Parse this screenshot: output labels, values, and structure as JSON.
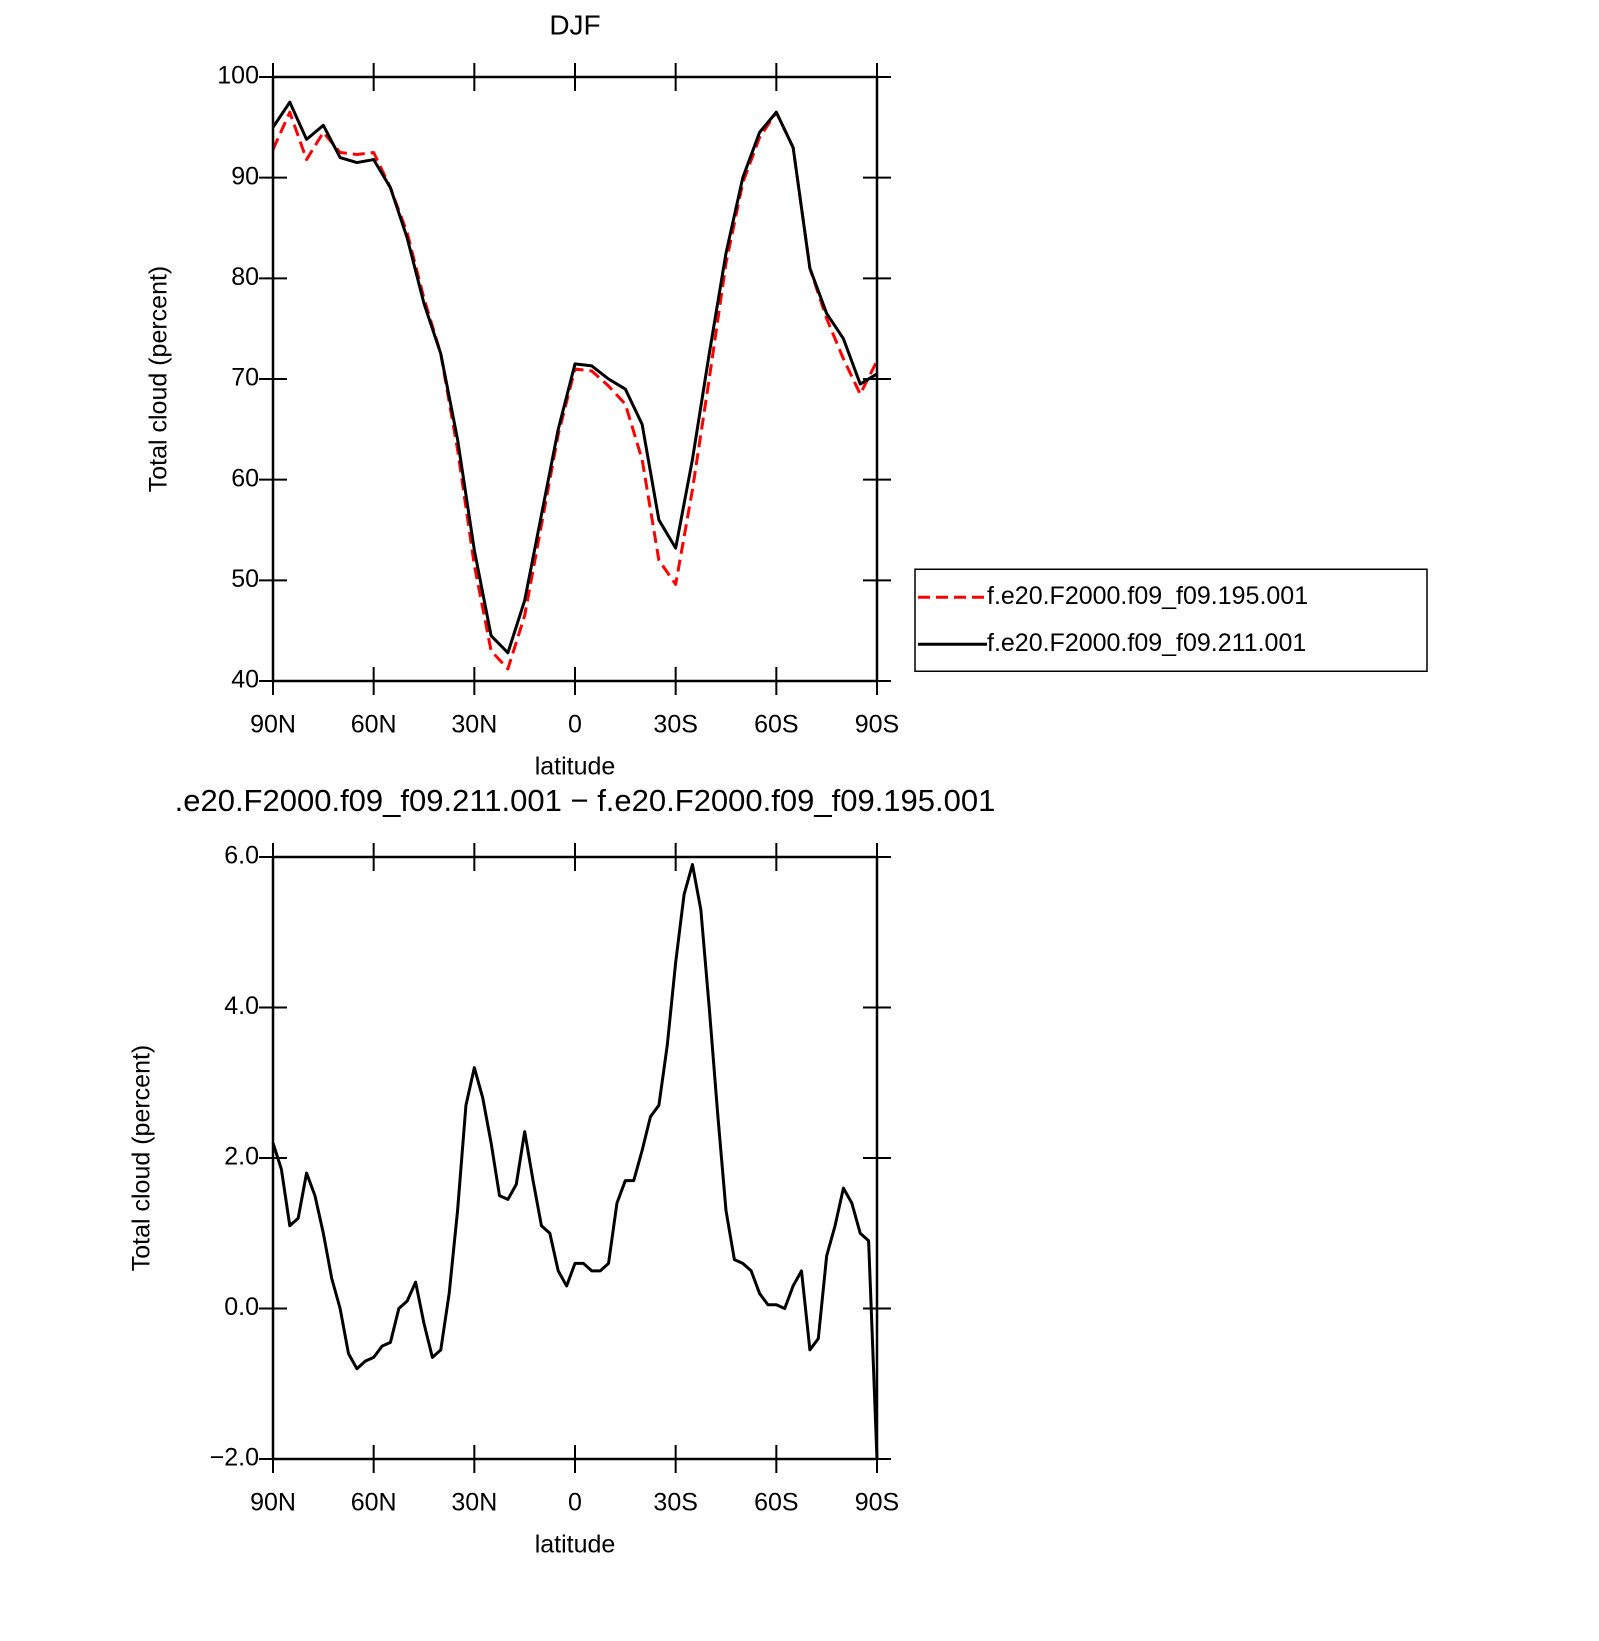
{
  "chart_data": [
    {
      "type": "line",
      "title": "DJF",
      "x_label": "latitude",
      "y_label": "Total cloud (percent)",
      "x": [
        90,
        85,
        80,
        75,
        70,
        65,
        60,
        55,
        50,
        45,
        40,
        35,
        30,
        25,
        20,
        15,
        10,
        5,
        0,
        -5,
        -10,
        -15,
        -20,
        -25,
        -30,
        -35,
        -40,
        -45,
        -50,
        -55,
        -60,
        -65,
        -70,
        -75,
        -80,
        -85,
        -90
      ],
      "series": [
        {
          "name": "f.e20.F2000.f09_f09.195.001",
          "color": "#ff0000",
          "linestyle": "dashed",
          "values": [
            92.8,
            96.5,
            91.8,
            94.5,
            92.5,
            92.3,
            92.5,
            89,
            84.5,
            78,
            72.5,
            63,
            51.5,
            43,
            41.2,
            46.5,
            55.5,
            64.5,
            71,
            70.8,
            69.3,
            67.5,
            62,
            52,
            49.6,
            59,
            70,
            81.5,
            89.5,
            94,
            96.5,
            93,
            81,
            76,
            72,
            68.5,
            71.8
          ]
        },
        {
          "name": "f.e20.F2000.f09_f09.211.001",
          "color": "#000000",
          "linestyle": "solid",
          "values": [
            95,
            97.5,
            93.8,
            95.2,
            92,
            91.5,
            91.8,
            89,
            84,
            77.5,
            72.5,
            64,
            53,
            44.5,
            42.8,
            48,
            56.5,
            65,
            71.5,
            71.3,
            70,
            69,
            65.5,
            56,
            53.2,
            62,
            72.5,
            82.5,
            90,
            94.5,
            96.5,
            93,
            81,
            76.5,
            74,
            69.5,
            70.5
          ]
        }
      ],
      "xlim": [
        90,
        -90
      ],
      "xticks": [
        {
          "value": 90,
          "label": "90N"
        },
        {
          "value": 60,
          "label": "60N"
        },
        {
          "value": 30,
          "label": "30N"
        },
        0,
        {
          "value": -30,
          "label": "30S"
        },
        {
          "value": -60,
          "label": "60S"
        },
        {
          "value": -90,
          "label": "90S"
        }
      ],
      "ylim": [
        40,
        100
      ],
      "yticks": [
        40,
        50,
        60,
        70,
        80,
        90,
        100
      ],
      "legend": "right",
      "grid": false
    },
    {
      "type": "line",
      "title": ".e20.F2000.f09_f09.211.001 − f.e20.F2000.f09_f09.195.001",
      "x_label": "latitude",
      "y_label": "Total cloud (percent)",
      "x": [
        90,
        87.5,
        85,
        82.5,
        80,
        77.5,
        75,
        72.5,
        70,
        67.5,
        65,
        62.5,
        60,
        57.5,
        55,
        52.5,
        50,
        47.5,
        45,
        42.5,
        40,
        37.5,
        35,
        32.5,
        30,
        27.5,
        25,
        22.5,
        20,
        17.5,
        15,
        12.5,
        10,
        7.5,
        5,
        2.5,
        0,
        -2.5,
        -5,
        -7.5,
        -10,
        -12.5,
        -15,
        -17.5,
        -20,
        -22.5,
        -25,
        -27.5,
        -30,
        -32.5,
        -35,
        -37.5,
        -40,
        -42.5,
        -45,
        -47.5,
        -50,
        -52.5,
        -55,
        -57.5,
        -60,
        -62.5,
        -65,
        -67.5,
        -70,
        -72.5,
        -75,
        -77.5,
        -80,
        -82.5,
        -85,
        -87.5,
        -90
      ],
      "series": [
        {
          "color": "#000000",
          "linestyle": "solid",
          "values": [
            2.2,
            1.85,
            1.1,
            1.2,
            1.8,
            1.5,
            1.0,
            0.4,
            0.0,
            -0.6,
            -0.8,
            -0.7,
            -0.65,
            -0.5,
            -0.45,
            0.0,
            0.1,
            0.35,
            -0.2,
            -0.65,
            -0.55,
            0.2,
            1.3,
            2.7,
            3.2,
            2.8,
            2.2,
            1.5,
            1.45,
            1.65,
            2.35,
            1.7,
            1.1,
            1.0,
            0.5,
            0.3,
            0.6,
            0.6,
            0.5,
            0.5,
            0.6,
            1.4,
            1.7,
            1.7,
            2.1,
            2.55,
            2.7,
            3.5,
            4.6,
            5.5,
            5.9,
            5.3,
            4.0,
            2.6,
            1.3,
            0.65,
            0.6,
            0.5,
            0.2,
            0.05,
            0.05,
            0.0,
            0.3,
            0.5,
            -0.55,
            -0.4,
            0.7,
            1.1,
            1.6,
            1.4,
            1.0,
            0.9,
            -2.0
          ]
        }
      ],
      "xlim": [
        90,
        -90
      ],
      "xticks": [
        {
          "value": 90,
          "label": "90N"
        },
        {
          "value": 60,
          "label": "60N"
        },
        {
          "value": 30,
          "label": "30N"
        },
        0,
        {
          "value": -30,
          "label": "30S"
        },
        {
          "value": -60,
          "label": "60S"
        },
        {
          "value": -90,
          "label": "90S"
        }
      ],
      "ylim": [
        -2,
        6
      ],
      "yticks": [
        {
          "value": -2,
          "label": "−2.0"
        },
        {
          "value": 0,
          "label": "0.0"
        },
        {
          "value": 2,
          "label": "2.0"
        },
        {
          "value": 4,
          "label": "4.0"
        },
        {
          "value": 6,
          "label": "6.0"
        }
      ],
      "grid": false
    }
  ]
}
